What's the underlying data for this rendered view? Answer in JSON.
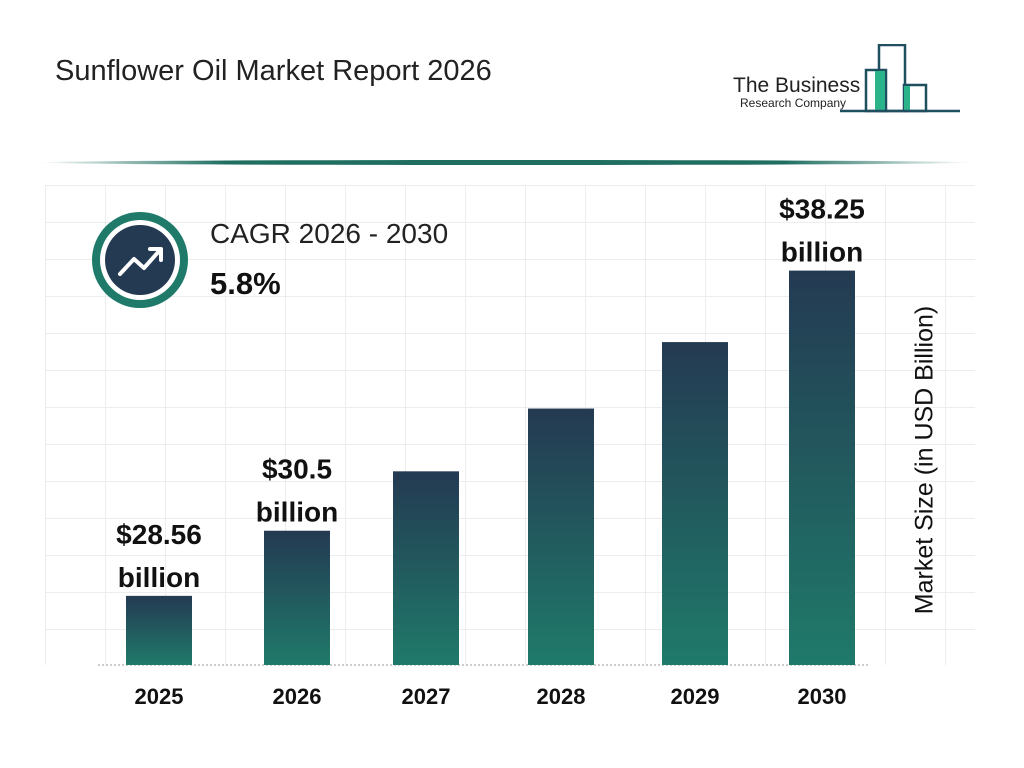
{
  "header": {
    "title": "Sunflower Oil Market Report 2026"
  },
  "logo": {
    "line1": "The Business",
    "line2": "Research Company",
    "color": "#1f4e5f",
    "accent": "#2bb38a"
  },
  "cagr": {
    "label": "CAGR 2026 - 2030",
    "value": "5.8%",
    "icon": "trend-up-icon"
  },
  "chart_data": {
    "type": "bar",
    "categories": [
      "2025",
      "2026",
      "2027",
      "2028",
      "2029",
      "2030"
    ],
    "values": [
      28.56,
      30.5,
      32.27,
      34.14,
      36.12,
      38.25
    ],
    "data_labels": [
      "$28.56 billion",
      "$30.5 billion",
      "",
      "",
      "",
      "$38.25 billion"
    ],
    "ylabel": "Market Size (in USD Billion)",
    "ylim": [
      26.5,
      40.8
    ],
    "grid": true,
    "colors": {
      "top": "#243a52",
      "bottom": "#1f7a6a"
    }
  }
}
